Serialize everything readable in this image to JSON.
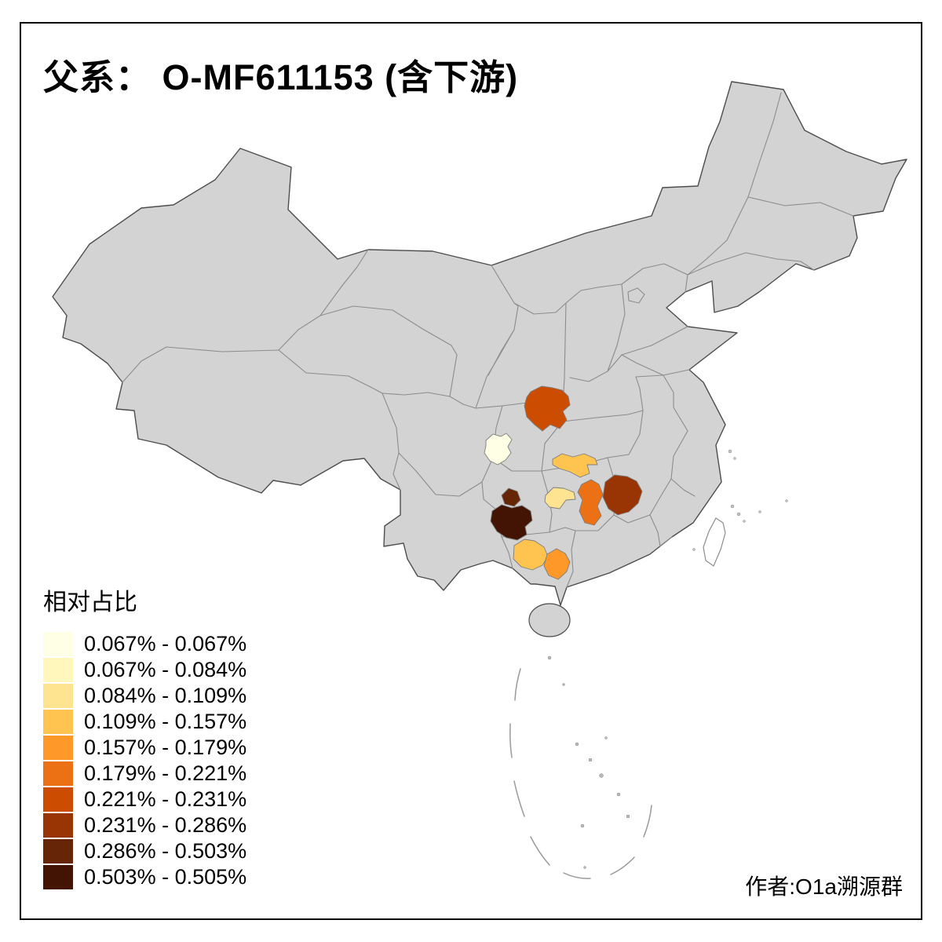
{
  "title": "父系： O-MF611153 (含下游)",
  "author_credit": "作者:O1a溯源群",
  "legend": {
    "title": "相对占比",
    "classes": [
      {
        "range": "0.067% - 0.067%",
        "color": "#FFFFE5"
      },
      {
        "range": "0.067% - 0.084%",
        "color": "#FFF7BC"
      },
      {
        "range": "0.084% - 0.109%",
        "color": "#FEE391"
      },
      {
        "range": "0.109% - 0.157%",
        "color": "#FEC44F"
      },
      {
        "range": "0.157% - 0.179%",
        "color": "#FE9929"
      },
      {
        "range": "0.179% - 0.221%",
        "color": "#EC7014"
      },
      {
        "range": "0.221% - 0.231%",
        "color": "#CC4C02"
      },
      {
        "range": "0.231% - 0.286%",
        "color": "#993404"
      },
      {
        "range": "0.286% - 0.503%",
        "color": "#662506"
      },
      {
        "range": "0.503% - 0.505%",
        "color": "#431403"
      }
    ]
  },
  "map": {
    "background": "#FFFFFF",
    "base_fill": "#D3D3D3",
    "province_border_color": "#8C8C8C",
    "outline_color": "#4D4D4D",
    "highlighted_regions": [
      {
        "id": "region-chongqing-west",
        "color": "#FFFFE5",
        "range": "0.067% - 0.067%"
      },
      {
        "id": "region-shaanxi-south",
        "color": "#CC4C02",
        "range": "0.221% - 0.231%"
      },
      {
        "id": "region-hubei-west",
        "color": "#FEC44F",
        "range": "0.109% - 0.157%"
      },
      {
        "id": "region-hunan-northwest",
        "color": "#FEE391",
        "range": "0.084% - 0.109%"
      },
      {
        "id": "region-guizhou-north",
        "color": "#662506",
        "range": "0.286% - 0.503%"
      },
      {
        "id": "region-guizhou-south",
        "color": "#431403",
        "range": "0.503% - 0.505%"
      },
      {
        "id": "region-hunan-central",
        "color": "#EC7014",
        "range": "0.179% - 0.221%"
      },
      {
        "id": "region-jiangxi",
        "color": "#993404",
        "range": "0.231% - 0.286%"
      },
      {
        "id": "region-yunnan-east",
        "color": "#FEC44F",
        "range": "0.109% - 0.157%"
      },
      {
        "id": "region-guangxi-central",
        "color": "#FE9929",
        "range": "0.157% - 0.179%"
      }
    ]
  }
}
